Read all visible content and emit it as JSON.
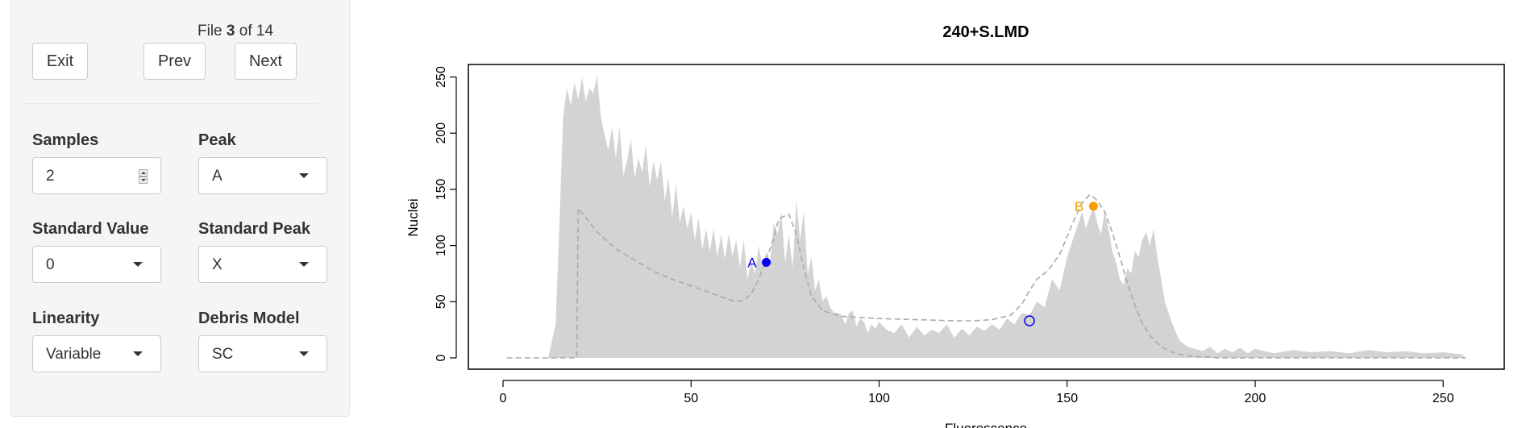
{
  "file_nav": {
    "prefix": "File",
    "current": "3",
    "middle": "of",
    "total": "14",
    "exit_label": "Exit",
    "prev_label": "Prev",
    "next_label": "Next"
  },
  "controls": {
    "samples": {
      "label": "Samples",
      "value": "2"
    },
    "peak": {
      "label": "Peak",
      "value": "A"
    },
    "standard_value": {
      "label": "Standard Value",
      "value": "0"
    },
    "standard_peak": {
      "label": "Standard Peak",
      "value": "X"
    },
    "linearity": {
      "label": "Linearity",
      "value": "Variable"
    },
    "debris_model": {
      "label": "Debris Model",
      "value": "SC"
    }
  },
  "chart_data": {
    "type": "area",
    "title": "240+S.LMD",
    "xlabel": "Fluorescence",
    "ylabel": "Nuclei",
    "xlim": [
      0,
      256
    ],
    "ylim": [
      0,
      250
    ],
    "xticks": [
      0,
      50,
      100,
      150,
      200,
      250
    ],
    "yticks": [
      0,
      50,
      100,
      150,
      200,
      250
    ],
    "histogram": {
      "color": "#d3d3d3",
      "x": [
        12,
        14,
        15,
        16,
        17,
        18,
        19,
        20,
        21,
        22,
        23,
        24,
        25,
        26,
        27,
        28,
        29,
        30,
        31,
        32,
        33,
        34,
        35,
        36,
        37,
        38,
        39,
        40,
        41,
        42,
        43,
        44,
        45,
        46,
        47,
        48,
        49,
        50,
        51,
        52,
        53,
        54,
        55,
        56,
        57,
        58,
        59,
        60,
        61,
        62,
        63,
        64,
        65,
        66,
        67,
        68,
        69,
        70,
        71,
        72,
        73,
        74,
        75,
        76,
        77,
        78,
        79,
        80,
        81,
        82,
        83,
        84,
        85,
        86,
        87,
        88,
        89,
        90,
        91,
        92,
        93,
        94,
        95,
        96,
        97,
        98,
        99,
        100,
        102,
        104,
        106,
        108,
        110,
        112,
        114,
        116,
        118,
        120,
        122,
        124,
        126,
        128,
        130,
        132,
        134,
        136,
        138,
        140,
        142,
        144,
        146,
        148,
        150,
        151,
        152,
        153,
        154,
        155,
        156,
        157,
        158,
        159,
        160,
        161,
        162,
        163,
        164,
        165,
        166,
        167,
        168,
        169,
        170,
        171,
        172,
        173,
        174,
        175,
        176,
        177,
        178,
        179,
        180,
        182,
        184,
        186,
        188,
        190,
        192,
        194,
        196,
        198,
        200,
        205,
        210,
        215,
        220,
        225,
        230,
        235,
        240,
        245,
        250,
        255,
        256
      ],
      "y": [
        0,
        30,
        120,
        215,
        240,
        225,
        245,
        230,
        250,
        228,
        240,
        235,
        252,
        215,
        198,
        185,
        205,
        178,
        205,
        162,
        175,
        195,
        160,
        178,
        165,
        190,
        152,
        175,
        158,
        175,
        140,
        160,
        125,
        155,
        120,
        135,
        115,
        130,
        105,
        125,
        96,
        115,
        95,
        115,
        90,
        110,
        88,
        110,
        90,
        105,
        80,
        105,
        70,
        85,
        75,
        100,
        80,
        95,
        85,
        120,
        110,
        130,
        85,
        110,
        80,
        140,
        105,
        130,
        75,
        90,
        60,
        70,
        50,
        55,
        45,
        40,
        40,
        38,
        30,
        40,
        42,
        28,
        35,
        32,
        22,
        30,
        26,
        32,
        25,
        22,
        30,
        18,
        28,
        20,
        25,
        22,
        30,
        18,
        26,
        20,
        28,
        24,
        30,
        25,
        35,
        30,
        40,
        38,
        50,
        45,
        70,
        60,
        90,
        100,
        110,
        120,
        130,
        115,
        125,
        135,
        120,
        110,
        130,
        115,
        95,
        85,
        70,
        65,
        80,
        75,
        95,
        90,
        105,
        112,
        100,
        115,
        90,
        70,
        50,
        40,
        30,
        22,
        15,
        10,
        8,
        6,
        10,
        4,
        8,
        5,
        9,
        4,
        8,
        4,
        7,
        5,
        6,
        4,
        7,
        5,
        6,
        4,
        5,
        3,
        0
      ]
    },
    "fit_curve": {
      "color": "#aaaaaa",
      "style": "dashed",
      "x": [
        1,
        19.5,
        19.6,
        20,
        22,
        25,
        30,
        35,
        40,
        45,
        50,
        55,
        60,
        62,
        64,
        66,
        68,
        70,
        72,
        73,
        74,
        76,
        78,
        80,
        82,
        85,
        90,
        95,
        100,
        110,
        120,
        125,
        130,
        135,
        138,
        140,
        142,
        145,
        148,
        150,
        152,
        154,
        156,
        157,
        158,
        160,
        162,
        164,
        166,
        168,
        170,
        172,
        175,
        178,
        180,
        182,
        185,
        188,
        190,
        195,
        200,
        256
      ],
      "y": [
        0,
        0,
        0,
        133,
        125,
        112,
        97,
        87,
        77,
        70,
        64,
        58,
        52,
        50,
        51,
        57,
        70,
        88,
        106,
        120,
        125,
        128,
        110,
        80,
        55,
        42,
        37,
        36,
        35,
        34,
        33,
        33,
        34,
        38,
        48,
        60,
        70,
        78,
        92,
        108,
        124,
        138,
        145,
        143,
        140,
        130,
        112,
        90,
        67,
        47,
        31,
        20,
        10,
        5,
        3,
        2,
        1,
        0.5,
        0,
        0,
        0,
        0
      ]
    },
    "peaks": [
      {
        "label": "A",
        "x": 70,
        "y": 85,
        "color": "#0000ee",
        "filled": true
      },
      {
        "label": "B",
        "x": 157,
        "y": 135,
        "color": "#f5a000",
        "filled": true
      }
    ],
    "markers": [
      {
        "x": 140,
        "y": 33,
        "color": "#0000ee",
        "filled": false
      }
    ]
  }
}
